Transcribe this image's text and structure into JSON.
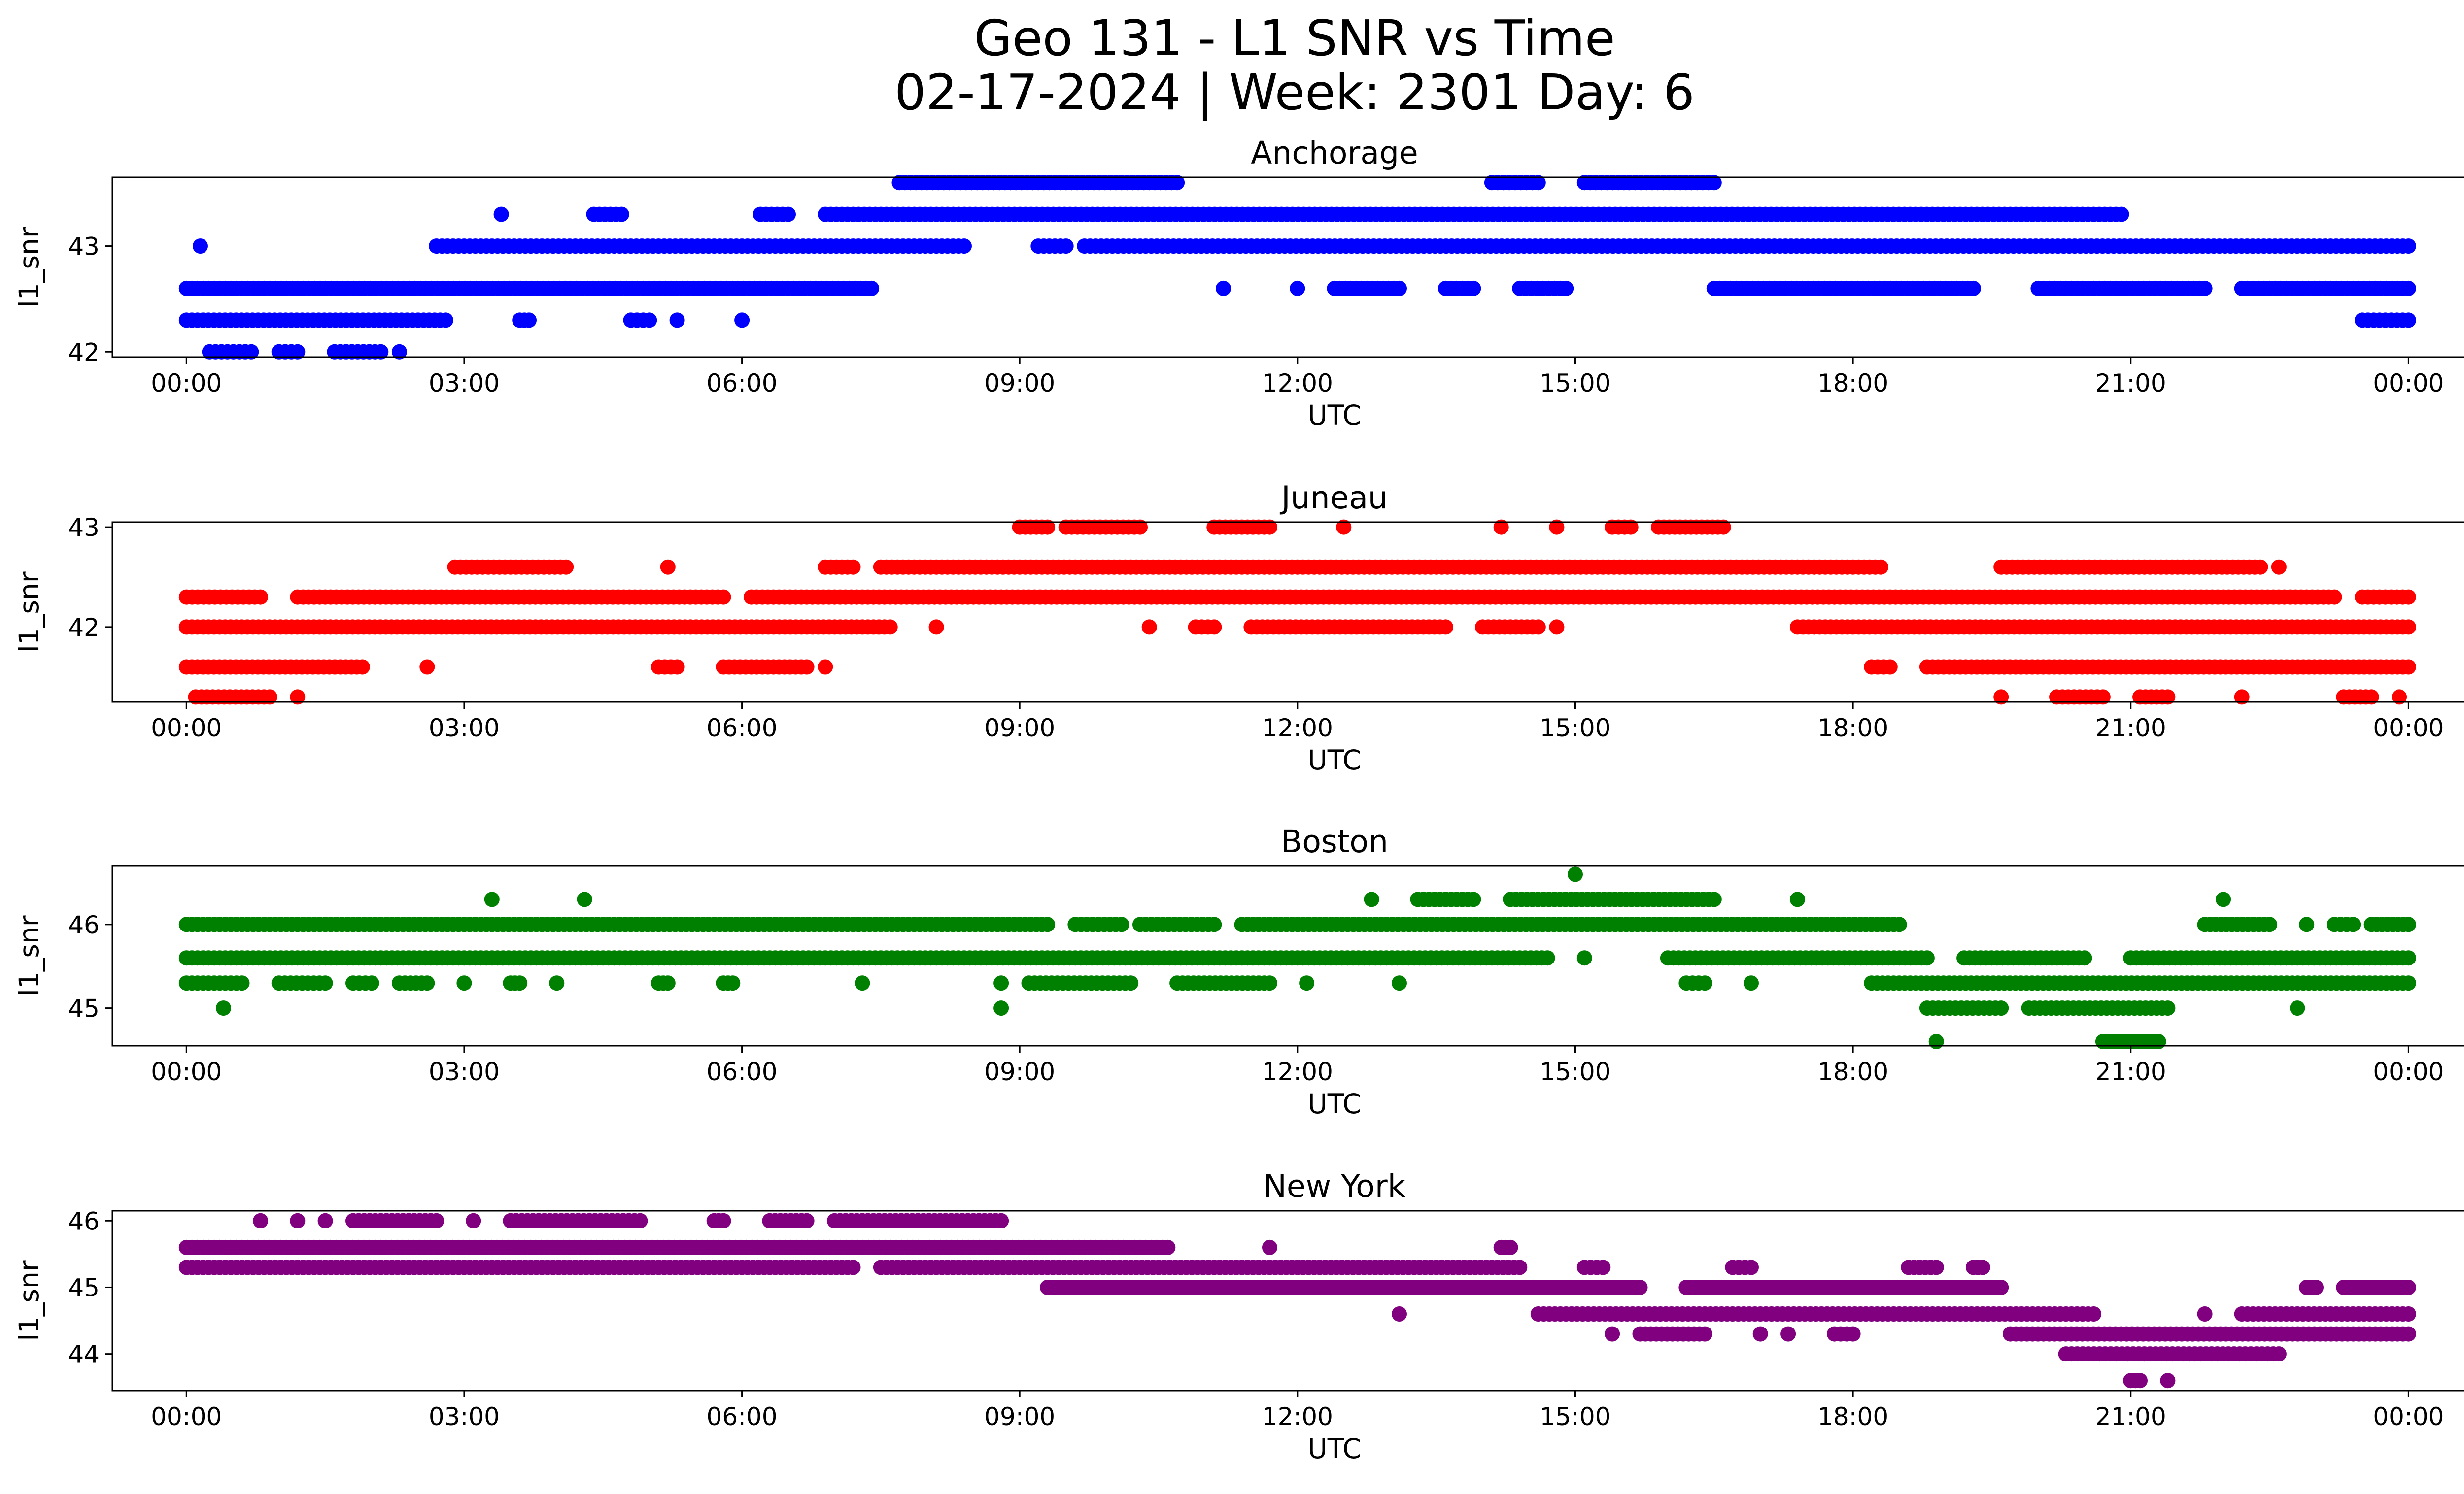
{
  "chart_data": {
    "type": "scatter",
    "title": "Geo 131 - L1 SNR vs Time",
    "subtitle": "02-17-2024 | Week: 2301 Day: 6",
    "xlabel": "UTC",
    "ylabel": "l1_snr",
    "x_unit": "hours_utc",
    "xlim": [
      -0.8,
      25.6
    ],
    "xticks": [
      0,
      3,
      6,
      9,
      12,
      15,
      18,
      21,
      24
    ],
    "xtick_labels": [
      "00:00",
      "03:00",
      "06:00",
      "09:00",
      "12:00",
      "15:00",
      "18:00",
      "21:00",
      "00:00"
    ],
    "panels": [
      {
        "name": "Anchorage",
        "color": "#0000ff",
        "ylim": [
          41.95,
          43.65
        ],
        "yticks": [
          42,
          43
        ],
        "ytick_labels": [
          "42",
          "43"
        ],
        "segments": [
          [
            43.6,
            7.7,
            10.7
          ],
          [
            43.6,
            14.1,
            14.6
          ],
          [
            43.6,
            15.1,
            16.5
          ],
          [
            43.3,
            3.4,
            3.4
          ],
          [
            43.3,
            4.4,
            4.7
          ],
          [
            43.3,
            6.2,
            6.5
          ],
          [
            43.3,
            6.9,
            20.9
          ],
          [
            43.0,
            0.15,
            0.15
          ],
          [
            43.0,
            2.7,
            8.4
          ],
          [
            43.0,
            9.2,
            9.5
          ],
          [
            43.0,
            9.7,
            24.0
          ],
          [
            42.6,
            0.0,
            7.4
          ],
          [
            42.6,
            11.2,
            11.2
          ],
          [
            42.6,
            12.0,
            12.0
          ],
          [
            42.6,
            12.4,
            13.1
          ],
          [
            42.6,
            13.6,
            13.9
          ],
          [
            42.6,
            14.4,
            14.9
          ],
          [
            42.6,
            16.5,
            19.3
          ],
          [
            42.6,
            20.0,
            21.8
          ],
          [
            42.6,
            22.2,
            24.0
          ],
          [
            42.3,
            0.0,
            2.8
          ],
          [
            42.3,
            3.6,
            3.7
          ],
          [
            42.3,
            4.8,
            5.0
          ],
          [
            42.3,
            5.3,
            5.3
          ],
          [
            42.3,
            6.0,
            6.0
          ],
          [
            42.3,
            23.5,
            24.0
          ],
          [
            42.0,
            0.25,
            0.7
          ],
          [
            42.0,
            1.0,
            1.2
          ],
          [
            42.0,
            1.6,
            2.1
          ],
          [
            42.0,
            2.3,
            2.3
          ]
        ]
      },
      {
        "name": "Juneau",
        "color": "#ff0000",
        "ylim": [
          41.25,
          43.05
        ],
        "yticks": [
          42,
          43
        ],
        "ytick_labels": [
          "42",
          "43"
        ],
        "segments": [
          [
            43.0,
            9.0,
            9.3
          ],
          [
            43.0,
            9.5,
            10.3
          ],
          [
            43.0,
            11.1,
            11.7
          ],
          [
            43.0,
            12.5,
            12.5
          ],
          [
            43.0,
            14.2,
            14.2
          ],
          [
            43.0,
            14.8,
            14.8
          ],
          [
            43.0,
            15.4,
            15.6
          ],
          [
            43.0,
            15.9,
            16.6
          ],
          [
            42.6,
            2.9,
            4.1
          ],
          [
            42.6,
            5.2,
            5.2
          ],
          [
            42.6,
            6.9,
            7.2
          ],
          [
            42.6,
            7.5,
            18.3
          ],
          [
            42.6,
            19.6,
            22.4
          ],
          [
            42.6,
            22.6,
            22.6
          ],
          [
            42.3,
            0.0,
            0.8
          ],
          [
            42.3,
            1.2,
            5.8
          ],
          [
            42.3,
            6.1,
            23.2
          ],
          [
            42.3,
            23.5,
            24.0
          ],
          [
            42.0,
            0.0,
            7.6
          ],
          [
            42.0,
            8.1,
            8.1
          ],
          [
            42.0,
            10.4,
            10.4
          ],
          [
            42.0,
            10.9,
            11.1
          ],
          [
            42.0,
            11.5,
            13.6
          ],
          [
            42.0,
            14.0,
            14.6
          ],
          [
            42.0,
            14.8,
            14.8
          ],
          [
            42.0,
            17.4,
            24.0
          ],
          [
            41.6,
            0.0,
            1.9
          ],
          [
            41.6,
            2.6,
            2.6
          ],
          [
            41.6,
            5.1,
            5.3
          ],
          [
            41.6,
            5.8,
            6.7
          ],
          [
            41.6,
            6.9,
            6.9
          ],
          [
            41.6,
            18.2,
            18.4
          ],
          [
            41.6,
            18.8,
            24.0
          ],
          [
            41.3,
            0.1,
            0.9
          ],
          [
            41.3,
            1.2,
            1.2
          ],
          [
            41.3,
            19.6,
            19.6
          ],
          [
            41.3,
            20.2,
            20.7
          ],
          [
            41.3,
            21.1,
            21.4
          ],
          [
            41.3,
            22.2,
            22.2
          ],
          [
            41.3,
            23.3,
            23.6
          ],
          [
            41.3,
            23.9,
            23.9
          ]
        ]
      },
      {
        "name": "Boston",
        "color": "#008000",
        "ylim": [
          44.55,
          46.7
        ],
        "yticks": [
          45,
          46
        ],
        "ytick_labels": [
          "45",
          "46"
        ],
        "segments": [
          [
            46.6,
            15.0,
            15.0
          ],
          [
            46.3,
            3.3,
            3.3
          ],
          [
            46.3,
            4.3,
            4.3
          ],
          [
            46.3,
            12.8,
            12.8
          ],
          [
            46.3,
            13.3,
            13.9
          ],
          [
            46.3,
            14.3,
            16.5
          ],
          [
            46.3,
            17.4,
            17.4
          ],
          [
            46.3,
            22.0,
            22.0
          ],
          [
            46.0,
            0.0,
            9.3
          ],
          [
            46.0,
            9.6,
            10.1
          ],
          [
            46.0,
            10.3,
            11.1
          ],
          [
            46.0,
            11.4,
            18.5
          ],
          [
            46.0,
            21.8,
            22.5
          ],
          [
            46.0,
            22.9,
            22.9
          ],
          [
            46.0,
            23.2,
            23.4
          ],
          [
            46.0,
            23.6,
            24.0
          ],
          [
            45.6,
            0.0,
            14.7
          ],
          [
            45.6,
            15.1,
            15.1
          ],
          [
            45.6,
            16.0,
            18.8
          ],
          [
            45.6,
            19.2,
            20.5
          ],
          [
            45.6,
            21.0,
            24.0
          ],
          [
            45.3,
            0.0,
            0.6
          ],
          [
            45.3,
            1.0,
            1.5
          ],
          [
            45.3,
            1.8,
            2.0
          ],
          [
            45.3,
            2.3,
            2.6
          ],
          [
            45.3,
            3.0,
            3.0
          ],
          [
            45.3,
            3.5,
            3.6
          ],
          [
            45.3,
            4.0,
            4.0
          ],
          [
            45.3,
            5.1,
            5.2
          ],
          [
            45.3,
            5.8,
            5.9
          ],
          [
            45.3,
            7.3,
            7.3
          ],
          [
            45.3,
            8.8,
            8.8
          ],
          [
            45.3,
            9.1,
            10.2
          ],
          [
            45.3,
            10.7,
            11.7
          ],
          [
            45.3,
            12.1,
            12.1
          ],
          [
            45.3,
            13.1,
            13.1
          ],
          [
            45.3,
            16.2,
            16.4
          ],
          [
            45.3,
            16.9,
            16.9
          ],
          [
            45.3,
            18.2,
            24.0
          ],
          [
            45.0,
            0.4,
            0.4
          ],
          [
            45.0,
            8.8,
            8.8
          ],
          [
            45.0,
            18.8,
            19.6
          ],
          [
            45.0,
            19.9,
            21.4
          ],
          [
            45.0,
            22.8,
            22.8
          ],
          [
            44.6,
            18.9,
            18.9
          ],
          [
            44.6,
            20.7,
            21.3
          ]
        ]
      },
      {
        "name": "New York",
        "color": "#800080",
        "ylim": [
          43.45,
          46.15
        ],
        "yticks": [
          44,
          45,
          46
        ],
        "ytick_labels": [
          "44",
          "45",
          "46"
        ],
        "segments": [
          [
            46.0,
            0.8,
            0.8
          ],
          [
            46.0,
            1.2,
            1.2
          ],
          [
            46.0,
            1.5,
            1.5
          ],
          [
            46.0,
            1.8,
            2.7
          ],
          [
            46.0,
            3.1,
            3.1
          ],
          [
            46.0,
            3.5,
            4.9
          ],
          [
            46.0,
            5.7,
            5.8
          ],
          [
            46.0,
            6.3,
            6.7
          ],
          [
            46.0,
            7.0,
            8.8
          ],
          [
            45.6,
            0.0,
            10.6
          ],
          [
            45.6,
            11.7,
            11.7
          ],
          [
            45.6,
            14.2,
            14.3
          ],
          [
            45.3,
            0.0,
            7.2
          ],
          [
            45.3,
            7.5,
            14.4
          ],
          [
            45.3,
            15.1,
            15.3
          ],
          [
            45.3,
            16.7,
            16.9
          ],
          [
            45.3,
            18.6,
            18.9
          ],
          [
            45.3,
            19.3,
            19.4
          ],
          [
            45.0,
            9.3,
            15.7
          ],
          [
            45.0,
            16.2,
            19.6
          ],
          [
            45.0,
            22.9,
            23.0
          ],
          [
            45.0,
            23.3,
            24.0
          ],
          [
            44.6,
            13.1,
            13.1
          ],
          [
            44.6,
            14.6,
            20.6
          ],
          [
            44.6,
            21.8,
            21.8
          ],
          [
            44.6,
            22.2,
            24.0
          ],
          [
            44.3,
            15.4,
            15.4
          ],
          [
            44.3,
            15.7,
            16.4
          ],
          [
            44.3,
            17.0,
            17.0
          ],
          [
            44.3,
            17.3,
            17.3
          ],
          [
            44.3,
            17.8,
            18.0
          ],
          [
            44.3,
            19.7,
            24.0
          ],
          [
            44.0,
            20.3,
            22.6
          ],
          [
            43.6,
            21.0,
            21.1
          ],
          [
            43.6,
            21.4,
            21.4
          ]
        ]
      }
    ]
  }
}
